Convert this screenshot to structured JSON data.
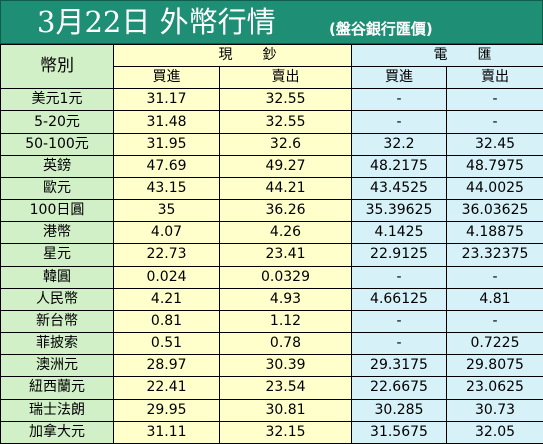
{
  "title": {
    "main": "3月22日 外幣行情",
    "sub": "(盤谷銀行匯價)"
  },
  "header": {
    "currency": "幣別",
    "cash_left": "現",
    "cash_right": "鈔",
    "wire_left": "電",
    "wire_right": "匯",
    "buy": "買進",
    "sell": "賣出"
  },
  "rows": [
    {
      "name": "美元1元",
      "cash_buy": "31.17",
      "cash_sell": "32.55",
      "wire_buy": "-",
      "wire_sell": "-"
    },
    {
      "name": "5-20元",
      "cash_buy": "31.48",
      "cash_sell": "32.55",
      "wire_buy": "-",
      "wire_sell": "-"
    },
    {
      "name": "50-100元",
      "cash_buy": "31.95",
      "cash_sell": "32.6",
      "wire_buy": "32.2",
      "wire_sell": "32.45"
    },
    {
      "name": "英鎊",
      "cash_buy": "47.69",
      "cash_sell": "49.27",
      "wire_buy": "48.2175",
      "wire_sell": "48.7975"
    },
    {
      "name": "歐元",
      "cash_buy": "43.15",
      "cash_sell": "44.21",
      "wire_buy": "43.4525",
      "wire_sell": "44.0025"
    },
    {
      "name": "100日圓",
      "cash_buy": "35",
      "cash_sell": "36.26",
      "wire_buy": "35.39625",
      "wire_sell": "36.03625"
    },
    {
      "name": "港幣",
      "cash_buy": "4.07",
      "cash_sell": "4.26",
      "wire_buy": "4.1425",
      "wire_sell": "4.18875"
    },
    {
      "name": "星元",
      "cash_buy": "22.73",
      "cash_sell": "23.41",
      "wire_buy": "22.9125",
      "wire_sell": "23.32375"
    },
    {
      "name": "韓圓",
      "cash_buy": "0.024",
      "cash_sell": "0.0329",
      "wire_buy": "-",
      "wire_sell": "-"
    },
    {
      "name": "人民幣",
      "cash_buy": "4.21",
      "cash_sell": "4.93",
      "wire_buy": "4.66125",
      "wire_sell": "4.81"
    },
    {
      "name": "新台幣",
      "cash_buy": "0.81",
      "cash_sell": "1.12",
      "wire_buy": "-",
      "wire_sell": "-"
    },
    {
      "name": "菲披索",
      "cash_buy": "0.51",
      "cash_sell": "0.78",
      "wire_buy": "-",
      "wire_sell": "0.7225"
    },
    {
      "name": "澳洲元",
      "cash_buy": "28.97",
      "cash_sell": "30.39",
      "wire_buy": "29.3175",
      "wire_sell": "29.8075"
    },
    {
      "name": "紐西蘭元",
      "cash_buy": "22.41",
      "cash_sell": "23.54",
      "wire_buy": "22.6675",
      "wire_sell": "23.0625"
    },
    {
      "name": "瑞士法朗",
      "cash_buy": "29.95",
      "cash_sell": "30.81",
      "wire_buy": "30.285",
      "wire_sell": "30.73"
    },
    {
      "name": "加拿大元",
      "cash_buy": "31.11",
      "cash_sell": "32.15",
      "wire_buy": "31.5675",
      "wire_sell": "32.05"
    }
  ],
  "colors": {
    "title_bg": "#1e8f74",
    "name_bg": "#d2f0c8",
    "cash_bg": "#ffffcc",
    "wire_bg": "#d6f2f8"
  }
}
